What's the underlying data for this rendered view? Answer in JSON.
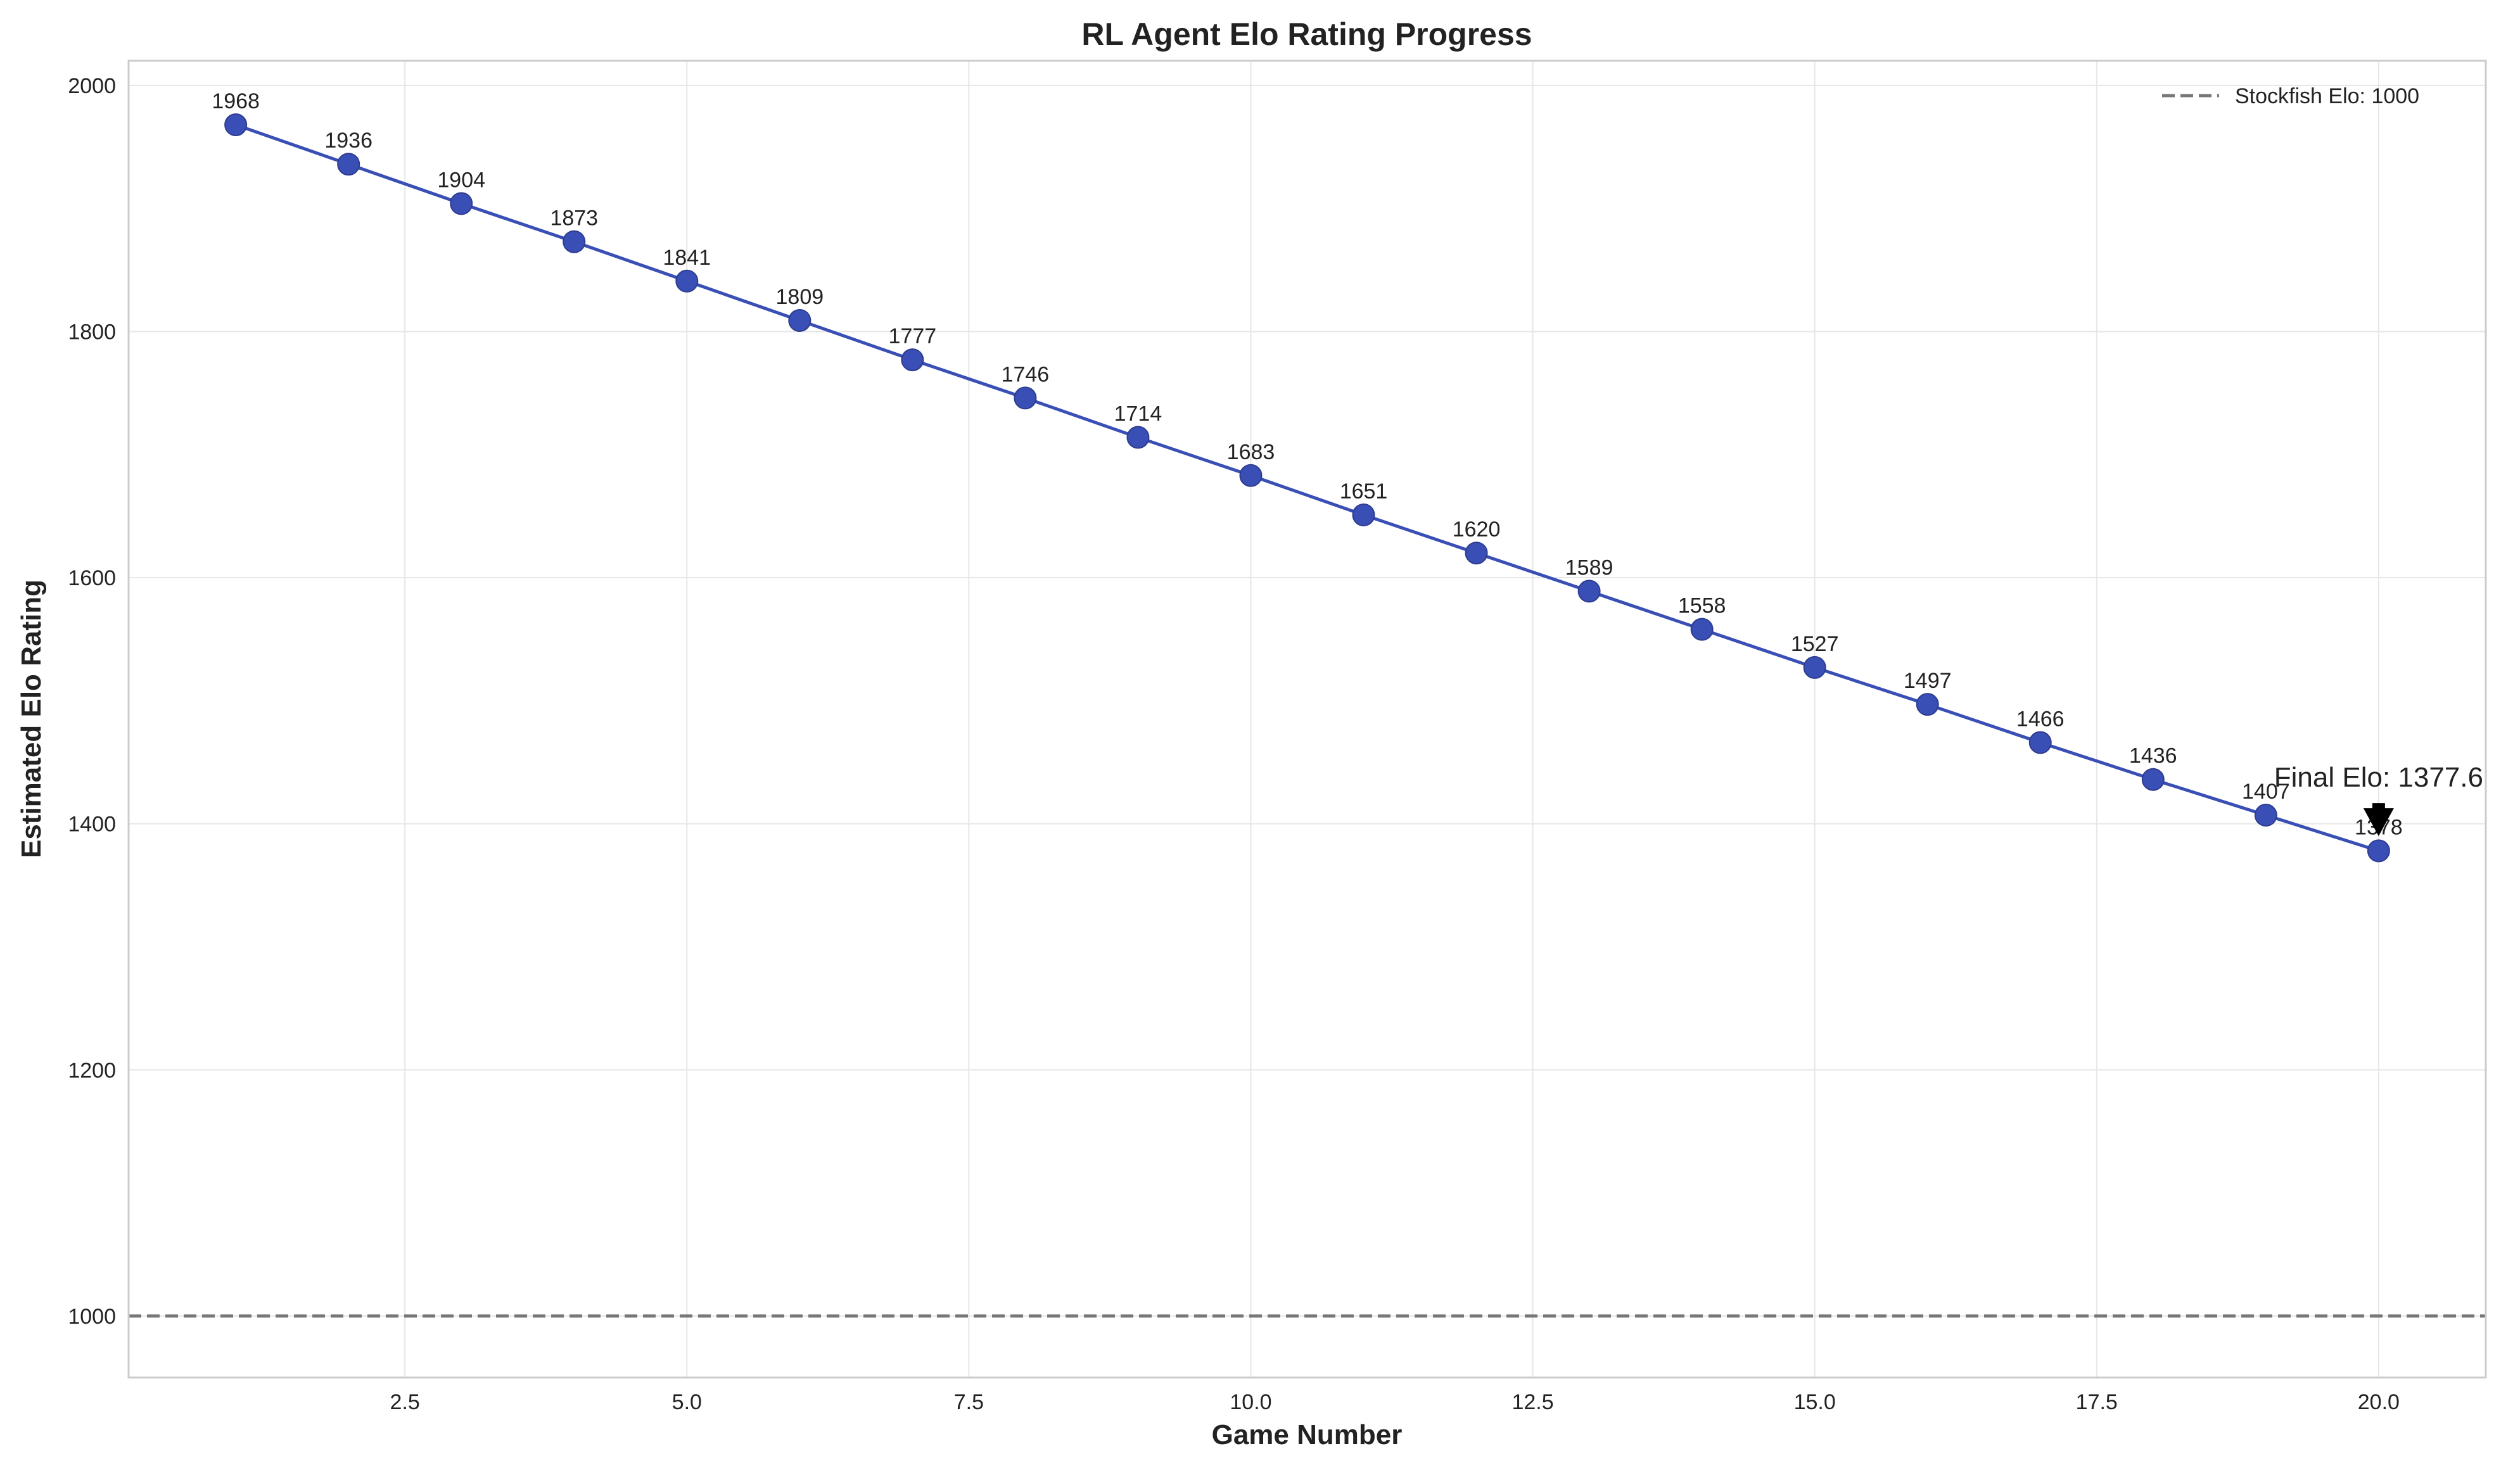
{
  "chart_data": {
    "type": "line",
    "title": "RL Agent Elo Rating Progress",
    "xlabel": "Game Number",
    "ylabel": "Estimated Elo Rating",
    "xlim": [
      0.05,
      20.95
    ],
    "ylim": [
      950,
      2020
    ],
    "x_ticks": [
      2.5,
      5.0,
      7.5,
      10.0,
      12.5,
      15.0,
      17.5,
      20.0
    ],
    "x_tick_labels": [
      "2.5",
      "5.0",
      "7.5",
      "10.0",
      "12.5",
      "15.0",
      "17.5",
      "20.0"
    ],
    "y_ticks": [
      1000,
      1200,
      1400,
      1600,
      1800,
      2000
    ],
    "y_tick_labels": [
      "1000",
      "1200",
      "1400",
      "1600",
      "1800",
      "2000"
    ],
    "grid": true,
    "legend_position": "top-right",
    "series": [
      {
        "color": "#3a4fb6",
        "marker": "circle",
        "x": [
          1,
          2,
          3,
          4,
          5,
          6,
          7,
          8,
          9,
          10,
          11,
          12,
          13,
          14,
          15,
          16,
          17,
          18,
          19,
          20
        ],
        "values": [
          1968,
          1936,
          1904,
          1873,
          1841,
          1809,
          1777,
          1746,
          1714,
          1683,
          1651,
          1620,
          1589,
          1558,
          1527,
          1497,
          1466,
          1436,
          1407,
          1378
        ],
        "labels": [
          "1968",
          "1936",
          "1904",
          "1873",
          "1841",
          "1809",
          "1777",
          "1746",
          "1714",
          "1683",
          "1651",
          "1620",
          "1589",
          "1558",
          "1527",
          "1497",
          "1466",
          "1436",
          "1407",
          "1378"
        ]
      }
    ],
    "reference_line": {
      "name": "Stockfish Elo: 1000",
      "y": 1000,
      "style": "dashed",
      "color": "#777777"
    },
    "annotation": {
      "text": "Final Elo: 1377.6",
      "x": 20,
      "y": 1377.6,
      "arrow": true
    }
  }
}
